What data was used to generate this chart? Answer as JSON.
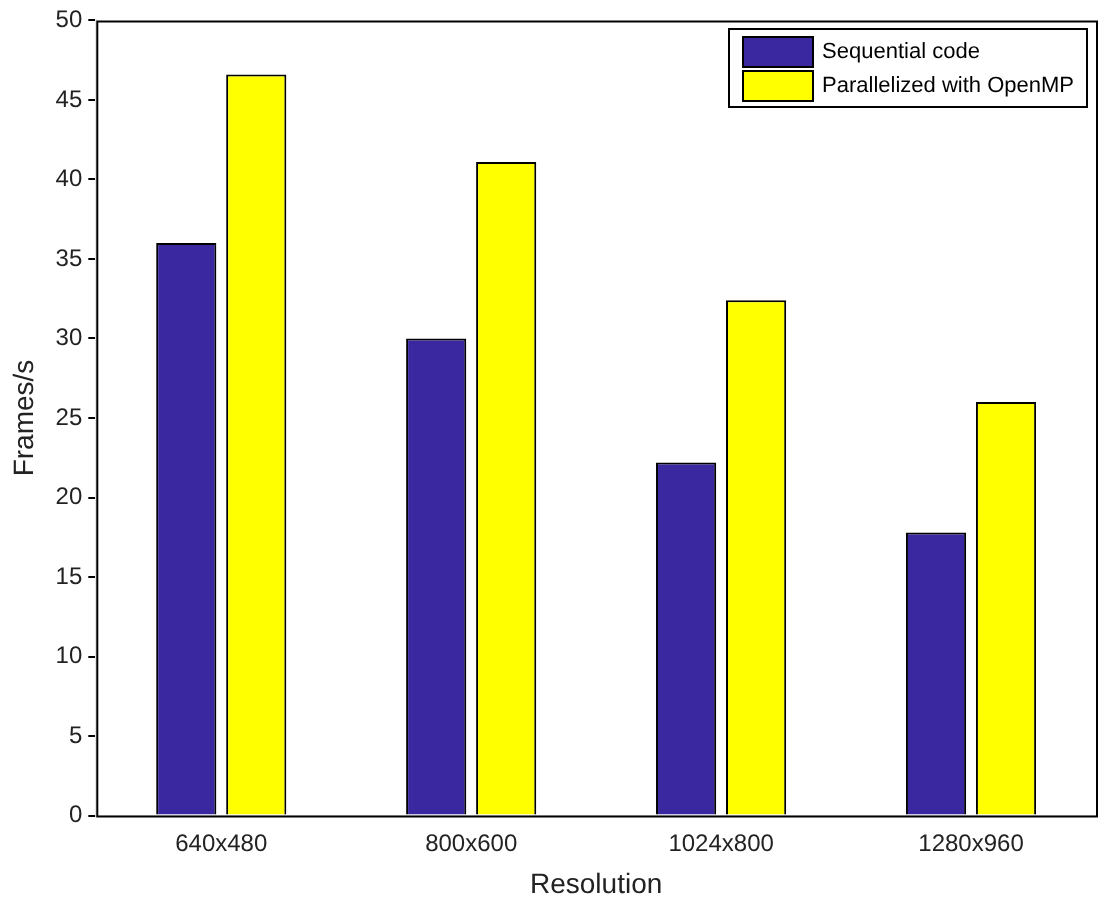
{
  "chart_data": {
    "type": "bar",
    "xlabel": "Resolution",
    "ylabel": "Frames/s",
    "categories": [
      "640x480",
      "800x600",
      "1024x800",
      "1280x960"
    ],
    "series": [
      {
        "name": "Sequential code",
        "color": "#3a28a0",
        "values": [
          36,
          30,
          22.2,
          17.8
        ]
      },
      {
        "name": "Parallelized with OpenMP",
        "color": "#ffff00",
        "values": [
          46.6,
          41.1,
          32.4,
          26
        ]
      }
    ],
    "ylim": [
      0,
      50
    ],
    "yticks": [
      0,
      5,
      10,
      15,
      20,
      25,
      30,
      35,
      40,
      45,
      50
    ],
    "grid": false,
    "legend": "top right"
  }
}
